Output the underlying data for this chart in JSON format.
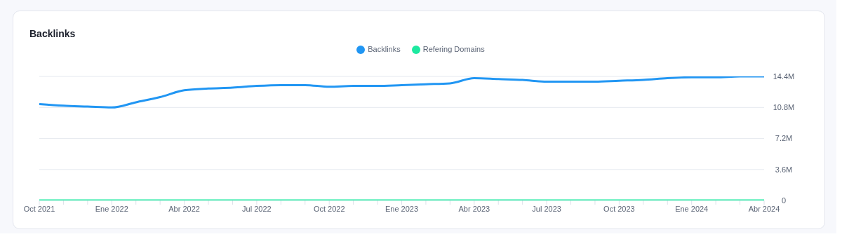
{
  "chart_data": {
    "type": "line",
    "title": "Backlinks",
    "categories": [
      "Oct 2021",
      null,
      null,
      "Ene 2022",
      null,
      null,
      "Abr 2022",
      null,
      null,
      "Jul 2022",
      null,
      null,
      "Oct 2022",
      null,
      null,
      "Ene 2023",
      null,
      null,
      "Abr 2023",
      null,
      null,
      "Jul 2023",
      null,
      null,
      "Oct 2023",
      null,
      null,
      "Ene 2024",
      null,
      null,
      "Abr 2024"
    ],
    "series": [
      {
        "name": "Backlinks",
        "color": "#2196f3",
        "values": [
          11200000,
          11000000,
          10900000,
          10800000,
          11400000,
          12000000,
          12800000,
          13000000,
          13100000,
          13300000,
          13400000,
          13400000,
          13200000,
          13300000,
          13300000,
          13400000,
          13500000,
          13600000,
          14200000,
          14100000,
          14000000,
          13800000,
          13800000,
          13800000,
          13900000,
          14000000,
          14200000,
          14300000,
          14300000,
          14400000,
          14400000
        ]
      },
      {
        "name": "Refering Domains",
        "color": "#1de9a0",
        "values": [
          0,
          0,
          0,
          0,
          0,
          0,
          0,
          0,
          0,
          0,
          0,
          0,
          0,
          0,
          0,
          0,
          0,
          0,
          0,
          0,
          0,
          0,
          0,
          0,
          0,
          0,
          0,
          0,
          0,
          0,
          0
        ]
      }
    ],
    "ylim": [
      0,
      14400000
    ],
    "yticks": [
      {
        "value": 0,
        "label": "0"
      },
      {
        "value": 3600000,
        "label": "3.6M"
      },
      {
        "value": 7200000,
        "label": "7.2M"
      },
      {
        "value": 10800000,
        "label": "10.8M"
      },
      {
        "value": 14400000,
        "label": "14.4M"
      }
    ],
    "grid": "y",
    "legend": "top",
    "marker": "none",
    "line_style": "solid"
  }
}
